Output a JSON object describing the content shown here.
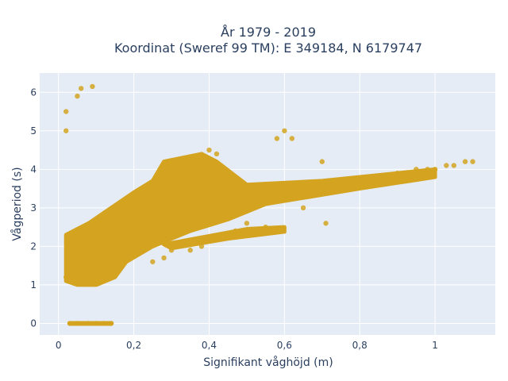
{
  "chart_data": {
    "type": "scatter",
    "title_line1": "År 1979 - 2019",
    "title_line2": "Koordinat (Sweref 99 TM): E 349184, N 6179747",
    "xlabel": "Signifikant våghöjd (m)",
    "ylabel": "Vågperiod (s)",
    "xlim": [
      -0.05,
      1.16
    ],
    "ylim": [
      -0.3,
      6.5
    ],
    "x_ticks": [
      0,
      0.2,
      0.4,
      0.6,
      0.8,
      1
    ],
    "x_tick_labels": [
      "0",
      "0,2",
      "0,4",
      "0,6",
      "0,8",
      "1"
    ],
    "y_ticks": [
      0,
      1,
      2,
      3,
      4,
      5,
      6
    ],
    "y_tick_labels": [
      "0",
      "1",
      "2",
      "3",
      "4",
      "5",
      "6"
    ],
    "grid": true,
    "legend": "none",
    "series": [
      {
        "color": "#d4a421",
        "x": [
          0.02,
          0.04,
          0.05,
          0.07,
          0.09,
          0.11,
          0.13,
          0.15,
          0.18,
          0.2,
          0.22,
          0.25,
          0.28,
          0.3,
          0.33,
          0.35,
          0.38,
          0.4,
          0.43,
          0.45,
          0.48,
          0.5,
          0.52,
          0.55,
          0.58,
          0.6,
          0.63,
          0.65,
          0.68,
          0.7,
          0.73,
          0.75,
          0.78,
          0.8,
          0.83,
          0.85,
          0.88,
          0.9,
          0.93,
          0.95,
          0.98,
          1.0,
          1.03,
          1.05,
          1.08,
          1.1,
          0.03,
          0.05,
          0.08,
          0.1,
          0.12,
          0.14,
          0.02,
          0.02,
          0.05,
          0.06,
          0.09,
          0.6,
          0.62,
          0.65,
          0.55,
          0.5,
          0.47,
          0.45,
          0.38,
          0.35,
          0.3,
          0.28,
          0.25,
          0.4,
          0.42,
          0.58,
          0.7,
          0.75,
          0.71
        ],
        "y": [
          1.2,
          1.5,
          1.8,
          2.0,
          2.1,
          2.2,
          2.3,
          2.5,
          2.6,
          2.7,
          2.8,
          2.9,
          3.0,
          3.1,
          3.1,
          3.2,
          3.2,
          3.2,
          3.3,
          3.3,
          3.3,
          3.4,
          3.4,
          3.4,
          3.4,
          3.5,
          3.5,
          3.5,
          3.5,
          3.6,
          3.6,
          3.6,
          3.7,
          3.7,
          3.8,
          3.8,
          3.8,
          3.9,
          3.9,
          4.0,
          4.0,
          4.0,
          4.1,
          4.1,
          4.2,
          4.2,
          0.0,
          0.0,
          0.0,
          0.0,
          0.0,
          0.0,
          5.0,
          5.5,
          5.9,
          6.1,
          6.15,
          5.0,
          4.8,
          3.0,
          2.5,
          2.6,
          2.4,
          2.3,
          2.0,
          1.9,
          1.9,
          1.7,
          1.6,
          4.5,
          4.4,
          4.8,
          4.2,
          3.5,
          2.6
        ]
      }
    ]
  }
}
